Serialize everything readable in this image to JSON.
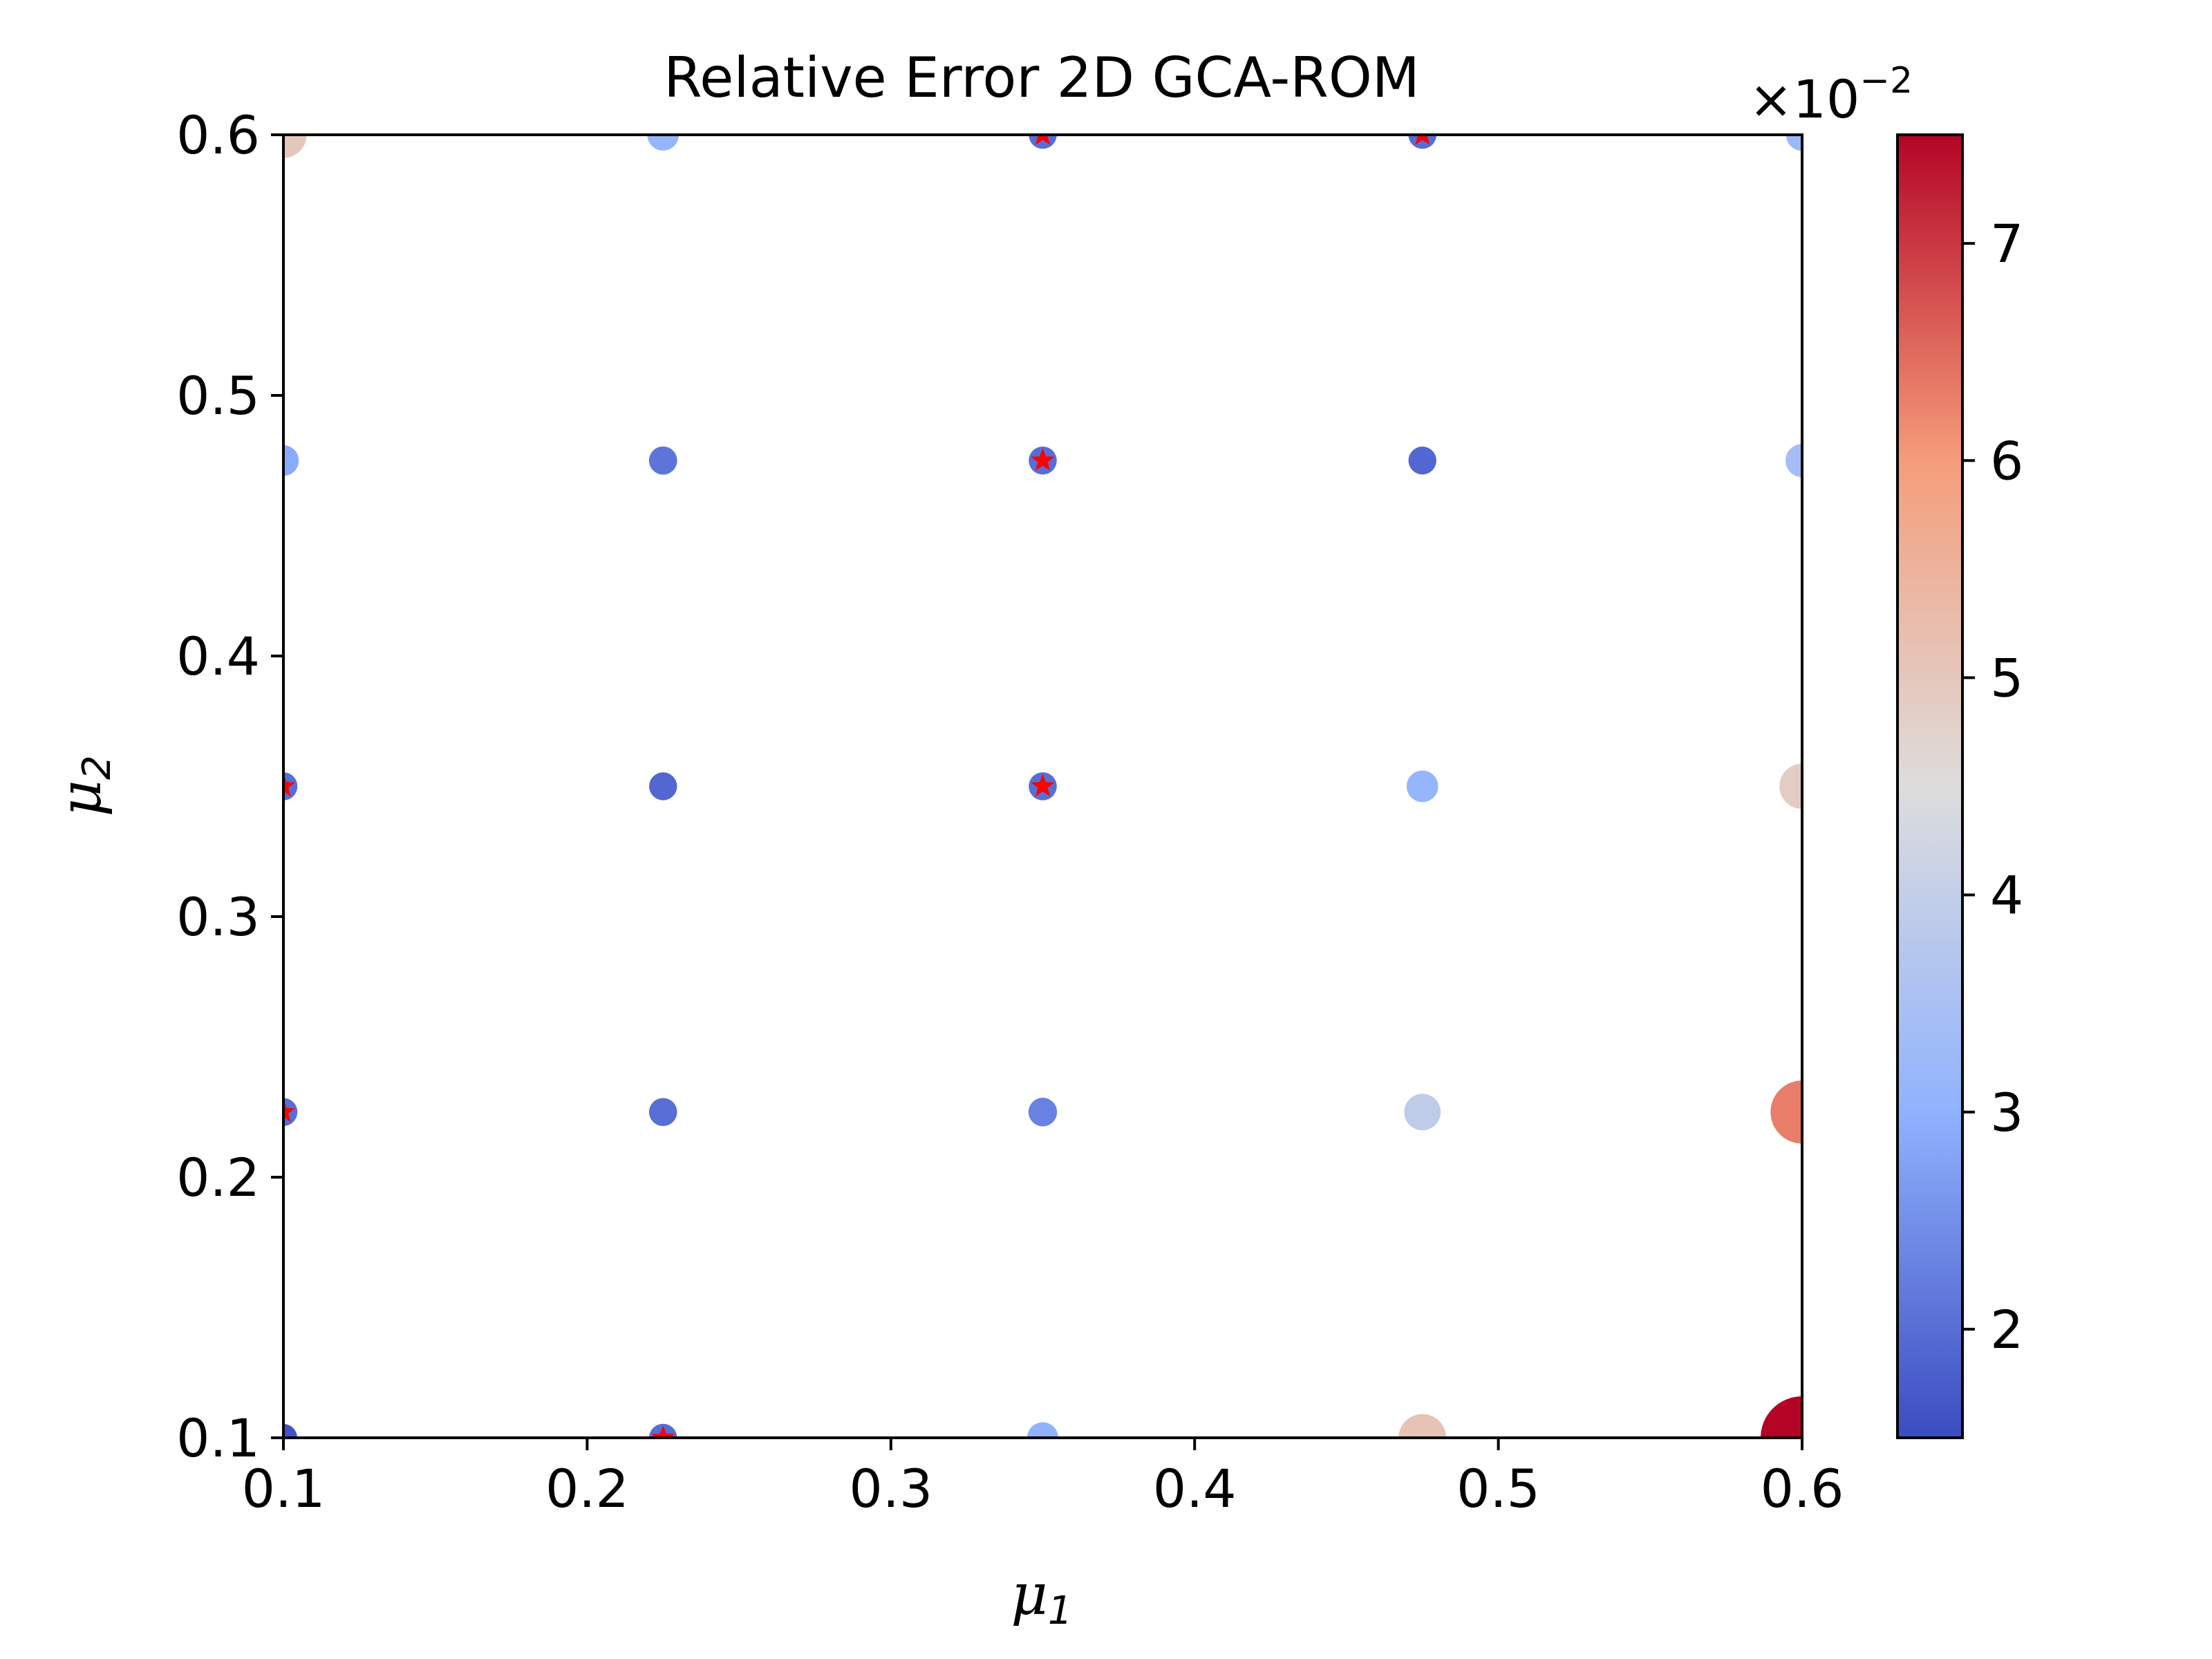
{
  "chart_data": {
    "type": "scatter",
    "title": "Relative Error 2D GCA-ROM",
    "xlabel": {
      "symbol": "μ",
      "subscript": "1"
    },
    "ylabel": {
      "symbol": "μ",
      "subscript": "2"
    },
    "xlim": [
      0.1,
      0.6
    ],
    "ylim": [
      0.1,
      0.6
    ],
    "xticks": [
      "0.1",
      "0.2",
      "0.3",
      "0.4",
      "0.5",
      "0.6"
    ],
    "yticks": [
      "0.1",
      "0.2",
      "0.3",
      "0.4",
      "0.5",
      "0.6"
    ],
    "grid": false,
    "colorbar": {
      "colormap": "coolwarm",
      "range": [
        1.5,
        7.5
      ],
      "ticks": [
        "2",
        "3",
        "4",
        "5",
        "6",
        "7"
      ],
      "multiplier": {
        "base": "×10",
        "exponent": "−2"
      }
    },
    "points": [
      {
        "x": 0.1,
        "y": 0.1,
        "value": 1.6
      },
      {
        "x": 0.225,
        "y": 0.1,
        "value": 2.0
      },
      {
        "x": 0.35,
        "y": 0.1,
        "value": 3.0
      },
      {
        "x": 0.475,
        "y": 0.1,
        "value": 5.1
      },
      {
        "x": 0.6,
        "y": 0.1,
        "value": 7.5
      },
      {
        "x": 0.1,
        "y": 0.225,
        "value": 2.0
      },
      {
        "x": 0.225,
        "y": 0.225,
        "value": 2.0
      },
      {
        "x": 0.35,
        "y": 0.225,
        "value": 2.3
      },
      {
        "x": 0.475,
        "y": 0.225,
        "value": 3.9
      },
      {
        "x": 0.6,
        "y": 0.225,
        "value": 6.3
      },
      {
        "x": 0.1,
        "y": 0.35,
        "value": 2.0
      },
      {
        "x": 0.225,
        "y": 0.35,
        "value": 1.9
      },
      {
        "x": 0.35,
        "y": 0.35,
        "value": 2.0
      },
      {
        "x": 0.475,
        "y": 0.35,
        "value": 3.1
      },
      {
        "x": 0.6,
        "y": 0.35,
        "value": 4.9
      },
      {
        "x": 0.1,
        "y": 0.475,
        "value": 2.9
      },
      {
        "x": 0.225,
        "y": 0.475,
        "value": 2.1
      },
      {
        "x": 0.35,
        "y": 0.475,
        "value": 2.0
      },
      {
        "x": 0.475,
        "y": 0.475,
        "value": 1.9
      },
      {
        "x": 0.6,
        "y": 0.475,
        "value": 3.4
      },
      {
        "x": 0.1,
        "y": 0.6,
        "value": 5.0
      },
      {
        "x": 0.225,
        "y": 0.6,
        "value": 3.1
      },
      {
        "x": 0.35,
        "y": 0.6,
        "value": 2.0
      },
      {
        "x": 0.475,
        "y": 0.6,
        "value": 2.0
      },
      {
        "x": 0.6,
        "y": 0.6,
        "value": 3.2
      }
    ],
    "training_points": [
      {
        "x": 0.35,
        "y": 0.6
      },
      {
        "x": 0.475,
        "y": 0.6
      },
      {
        "x": 0.35,
        "y": 0.475
      },
      {
        "x": 0.1,
        "y": 0.35
      },
      {
        "x": 0.35,
        "y": 0.35
      },
      {
        "x": 0.1,
        "y": 0.225
      },
      {
        "x": 0.225,
        "y": 0.1
      }
    ],
    "training_marker_color": "#ff0000"
  }
}
